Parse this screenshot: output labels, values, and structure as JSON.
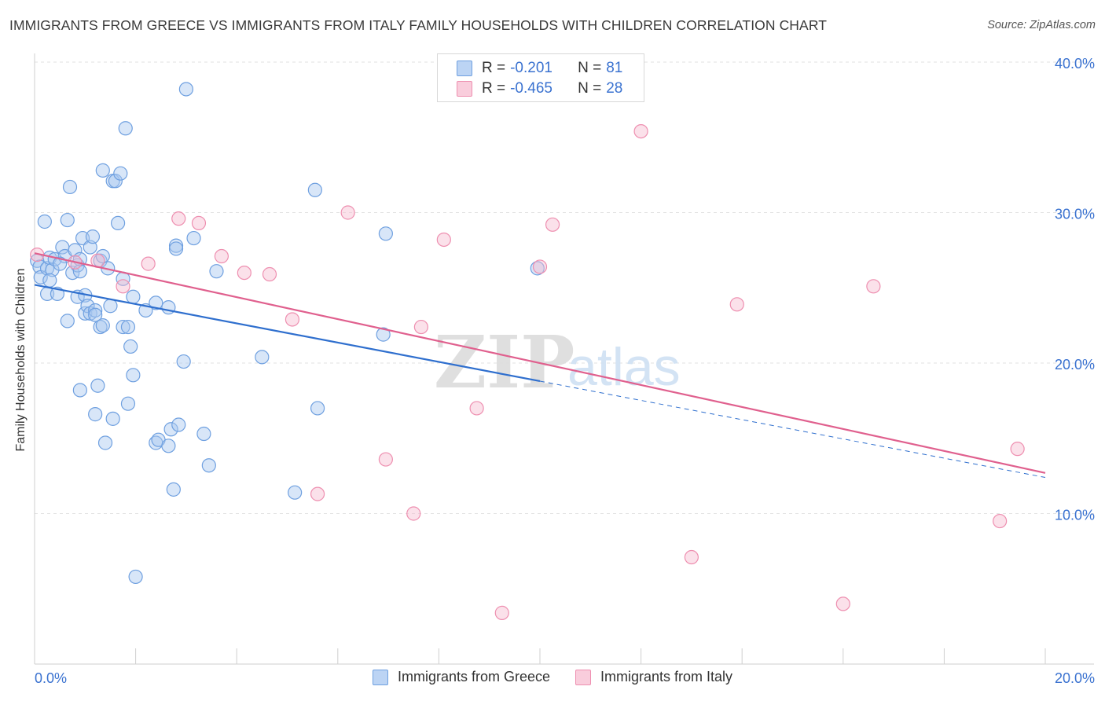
{
  "title": "IMMIGRANTS FROM GREECE VS IMMIGRANTS FROM ITALY FAMILY HOUSEHOLDS WITH CHILDREN CORRELATION CHART",
  "source": "Source: ZipAtlas.com",
  "watermark": {
    "zip": "ZIP",
    "atlas": "atlas"
  },
  "legend": {
    "greece": {
      "r_label": "R =",
      "r_value": "-0.201",
      "n_label": "N =",
      "n_value": "81"
    },
    "italy": {
      "r_label": "R =",
      "r_value": "-0.465",
      "n_label": "N =",
      "n_value": "28"
    }
  },
  "colors": {
    "greece_fill": "#a9c8f0",
    "greece_stroke": "#6fa0e0",
    "greece_line": "#2f6fce",
    "italy_fill": "#f7bcd0",
    "italy_stroke": "#ee8fb0",
    "italy_line": "#e0608e",
    "tick_text": "#3a72d0",
    "grid": "#e2e2e2"
  },
  "chart_data": {
    "type": "scatter",
    "title": "IMMIGRANTS FROM GREECE VS IMMIGRANTS FROM ITALY FAMILY HOUSEHOLDS WITH CHILDREN CORRELATION CHART",
    "xlabel": "",
    "ylabel": "Family Households with Children",
    "xlim": [
      0,
      20
    ],
    "ylim": [
      0,
      40
    ],
    "x_tick_labels": [
      "0.0%",
      "20.0%"
    ],
    "y_ticks": [
      10,
      20,
      30,
      40
    ],
    "y_tick_labels": [
      "10.0%",
      "20.0%",
      "30.0%",
      "40.0%"
    ],
    "legend_position": "top-center",
    "series": [
      {
        "name": "Immigrants from Greece",
        "r": -0.201,
        "n": 81,
        "trend": {
          "x0": 0,
          "y0": 25.2,
          "x1": 20,
          "y1": 12.4,
          "solid_until_x": 10
        },
        "points": [
          [
            0.05,
            26.8
          ],
          [
            0.1,
            26.4
          ],
          [
            0.12,
            25.7
          ],
          [
            0.2,
            29.4
          ],
          [
            0.25,
            26.3
          ],
          [
            0.3,
            27.0
          ],
          [
            0.35,
            26.2
          ],
          [
            0.4,
            26.9
          ],
          [
            0.25,
            24.6
          ],
          [
            0.3,
            25.5
          ],
          [
            0.45,
            24.6
          ],
          [
            0.55,
            27.7
          ],
          [
            0.6,
            27.1
          ],
          [
            0.65,
            29.5
          ],
          [
            0.65,
            22.8
          ],
          [
            0.7,
            31.7
          ],
          [
            0.75,
            26.0
          ],
          [
            0.8,
            27.5
          ],
          [
            0.85,
            26.5
          ],
          [
            0.85,
            24.4
          ],
          [
            0.9,
            18.2
          ],
          [
            0.9,
            26.1
          ],
          [
            0.9,
            26.9
          ],
          [
            0.95,
            28.3
          ],
          [
            1.0,
            24.5
          ],
          [
            1.0,
            23.3
          ],
          [
            1.05,
            23.8
          ],
          [
            1.1,
            27.7
          ],
          [
            1.1,
            23.3
          ],
          [
            1.15,
            28.4
          ],
          [
            1.2,
            23.5
          ],
          [
            1.2,
            23.2
          ],
          [
            1.2,
            16.6
          ],
          [
            1.25,
            18.5
          ],
          [
            1.3,
            22.4
          ],
          [
            1.3,
            26.8
          ],
          [
            1.35,
            22.5
          ],
          [
            1.35,
            27.1
          ],
          [
            1.35,
            32.8
          ],
          [
            1.4,
            14.7
          ],
          [
            1.45,
            26.3
          ],
          [
            1.5,
            23.8
          ],
          [
            1.55,
            16.3
          ],
          [
            1.55,
            32.1
          ],
          [
            1.6,
            32.1
          ],
          [
            1.65,
            29.3
          ],
          [
            1.7,
            32.6
          ],
          [
            1.75,
            25.6
          ],
          [
            1.75,
            22.4
          ],
          [
            1.8,
            35.6
          ],
          [
            1.85,
            22.4
          ],
          [
            1.85,
            17.3
          ],
          [
            1.9,
            21.1
          ],
          [
            1.95,
            19.2
          ],
          [
            1.95,
            24.4
          ],
          [
            2.0,
            5.8
          ],
          [
            2.2,
            23.5
          ],
          [
            2.4,
            24.0
          ],
          [
            2.4,
            14.7
          ],
          [
            2.45,
            14.9
          ],
          [
            2.65,
            23.7
          ],
          [
            2.65,
            14.5
          ],
          [
            2.7,
            15.6
          ],
          [
            2.75,
            11.6
          ],
          [
            2.8,
            27.8
          ],
          [
            2.8,
            27.6
          ],
          [
            2.85,
            15.9
          ],
          [
            2.95,
            20.1
          ],
          [
            3.0,
            38.2
          ],
          [
            3.15,
            28.3
          ],
          [
            3.35,
            15.3
          ],
          [
            3.45,
            13.2
          ],
          [
            3.6,
            26.1
          ],
          [
            4.5,
            20.4
          ],
          [
            5.15,
            11.4
          ],
          [
            5.55,
            31.5
          ],
          [
            5.6,
            17.0
          ],
          [
            6.9,
            21.9
          ],
          [
            6.95,
            28.6
          ],
          [
            9.95,
            26.3
          ],
          [
            0.5,
            26.6
          ]
        ]
      },
      {
        "name": "Immigrants from Italy",
        "r": -0.465,
        "n": 28,
        "trend": {
          "x0": 0,
          "y0": 27.3,
          "x1": 20,
          "y1": 12.7
        },
        "points": [
          [
            0.05,
            27.2
          ],
          [
            1.25,
            26.8
          ],
          [
            1.75,
            25.1
          ],
          [
            2.25,
            26.6
          ],
          [
            2.85,
            29.6
          ],
          [
            3.25,
            29.3
          ],
          [
            3.7,
            27.1
          ],
          [
            4.15,
            26.0
          ],
          [
            4.65,
            25.9
          ],
          [
            5.1,
            22.9
          ],
          [
            5.6,
            11.3
          ],
          [
            6.2,
            30.0
          ],
          [
            6.95,
            13.6
          ],
          [
            7.5,
            10.0
          ],
          [
            7.65,
            22.4
          ],
          [
            8.1,
            28.2
          ],
          [
            8.75,
            17.0
          ],
          [
            9.25,
            3.4
          ],
          [
            10.0,
            26.4
          ],
          [
            10.25,
            29.2
          ],
          [
            12.0,
            35.4
          ],
          [
            13.0,
            7.1
          ],
          [
            13.9,
            23.9
          ],
          [
            16.0,
            4.0
          ],
          [
            16.6,
            25.1
          ],
          [
            19.1,
            9.5
          ],
          [
            19.45,
            14.3
          ],
          [
            0.8,
            26.7
          ]
        ]
      }
    ]
  }
}
